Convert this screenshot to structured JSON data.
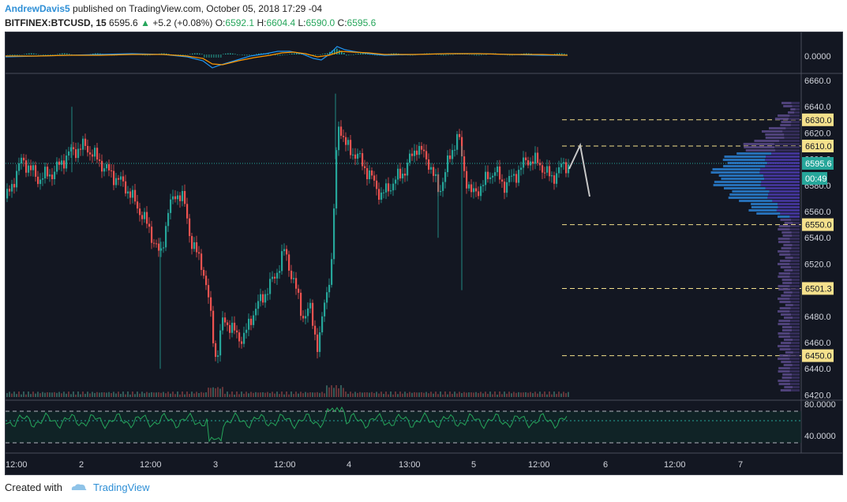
{
  "header": {
    "author": "AndrewDavis5",
    "published_text": "published on TradingView.com, October 05, 2018 17:29 -04",
    "symbol": "BITFINEX:BTCUSD, 15",
    "price": "6595.6",
    "change": "+5.2 (+0.08%)",
    "open_label": "O:",
    "open": "6592.1",
    "high_label": "H:",
    "high": "6604.4",
    "low_label": "L:",
    "low": "6590.0",
    "close_label": "C:",
    "close": "6595.6"
  },
  "indicator_top": {
    "value_label": "0.0000"
  },
  "price_axis": {
    "ticks": [
      "6660.0",
      "6640.0",
      "6620.0",
      "6600.0",
      "6580.0",
      "6560.0",
      "6540.0",
      "6520.0",
      "6500.0",
      "6480.0",
      "6460.0",
      "6440.0",
      "6420.0"
    ],
    "current_price": "6595.6",
    "countdown": "00:49",
    "levels": [
      "6630.0",
      "6610.0",
      "6550.0",
      "6501.3",
      "6450.0"
    ]
  },
  "indicator_bottom": {
    "upper_label": "80.0000",
    "lower_label": "40.0000"
  },
  "time_axis": {
    "labels": [
      "12:00",
      "2",
      "12:00",
      "3",
      "12:00",
      "4",
      "13:00",
      "5",
      "12:00",
      "6",
      "12:00",
      "7"
    ]
  },
  "footer": {
    "created_with": "Created with",
    "brand": "TradingView"
  },
  "colors": {
    "up": "#26a69a",
    "down": "#ef5350",
    "level": "#f5e18c",
    "accent": "#2e8fd6"
  }
}
